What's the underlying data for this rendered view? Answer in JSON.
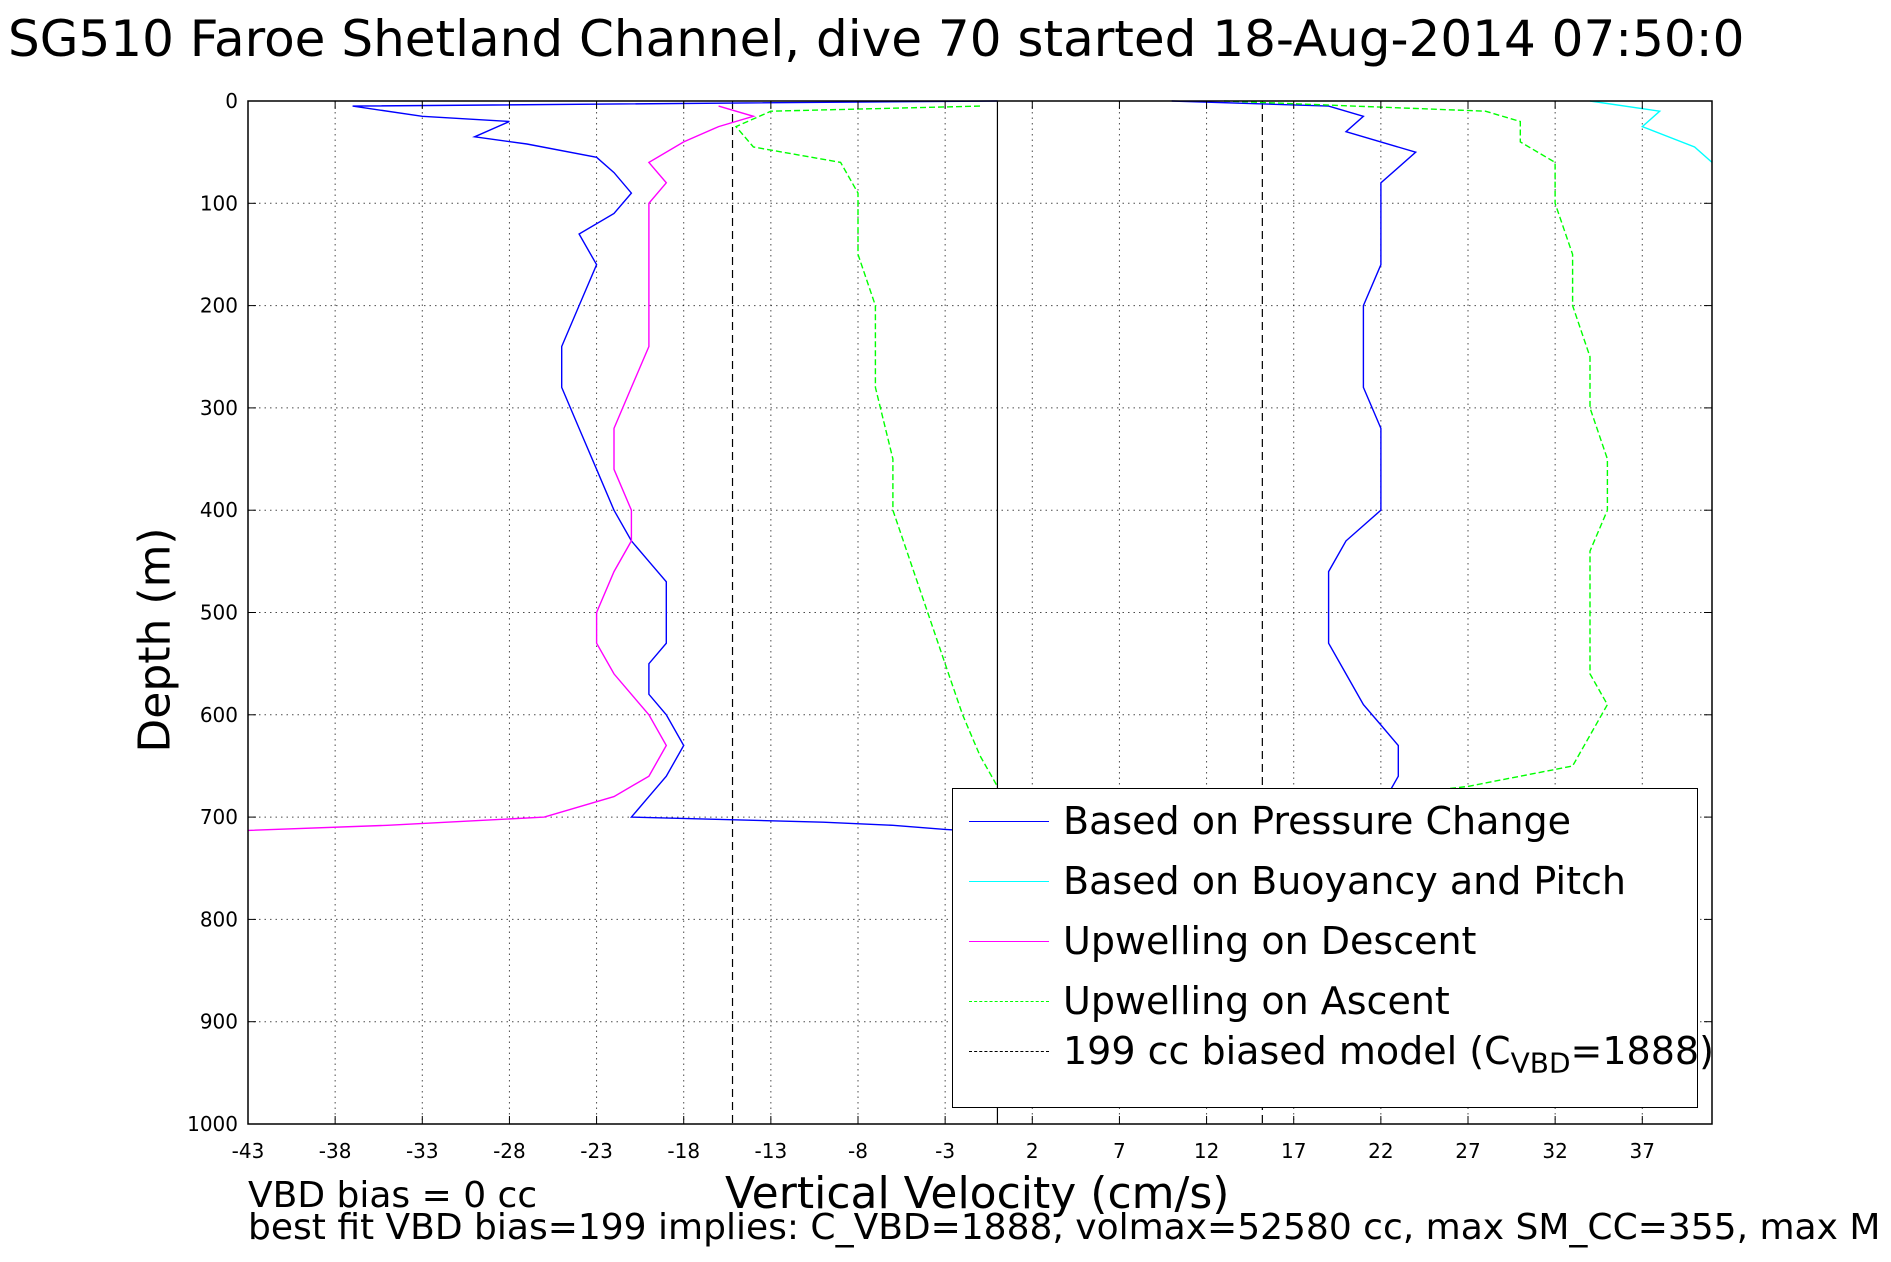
{
  "chart_data": {
    "type": "line",
    "title": "SG510 Faroe Shetland Channel, dive 70 started 18-Aug-2014 07:50:0",
    "xlabel": "Vertical Velocity (cm/s)",
    "ylabel": "Depth (m)",
    "xlim": [
      -43,
      41
    ],
    "ylim": [
      1000,
      0
    ],
    "y_reversed": true,
    "grid": true,
    "xticks": [
      -43,
      -38,
      -33,
      -28,
      -23,
      -18,
      -13,
      -8,
      -3,
      2,
      7,
      12,
      17,
      22,
      27,
      32,
      37
    ],
    "yticks": [
      0,
      100,
      200,
      300,
      400,
      500,
      600,
      700,
      800,
      900,
      1000
    ],
    "notes": [
      "VBD bias = 0 cc",
      "best fit VBD bias=199 implies: C_VBD=1888, volmax=52580 cc, max SM_CC=355, max M"
    ],
    "legend_position": "bottom-right",
    "reference_lines": [
      {
        "x": -15.2,
        "style": "dashed",
        "color": "#000000"
      },
      {
        "x": 0,
        "style": "solid",
        "color": "#000000"
      },
      {
        "x": 15.2,
        "style": "dashed",
        "color": "#000000"
      }
    ],
    "series": [
      {
        "name": "Based on Pressure Change",
        "color": "#0000ff",
        "style": "solid",
        "points": [
          [
            0,
            0
          ],
          [
            -37,
            5
          ],
          [
            -33,
            15
          ],
          [
            -28,
            20
          ],
          [
            -30,
            35
          ],
          [
            -27,
            42
          ],
          [
            -23,
            55
          ],
          [
            -22,
            70
          ],
          [
            -21,
            90
          ],
          [
            -22,
            110
          ],
          [
            -24,
            130
          ],
          [
            -23,
            160
          ],
          [
            -24,
            200
          ],
          [
            -25,
            240
          ],
          [
            -25,
            280
          ],
          [
            -24,
            320
          ],
          [
            -23,
            360
          ],
          [
            -22,
            400
          ],
          [
            -21,
            430
          ],
          [
            -20,
            450
          ],
          [
            -19,
            470
          ],
          [
            -19,
            500
          ],
          [
            -19,
            530
          ],
          [
            -20,
            550
          ],
          [
            -20,
            580
          ],
          [
            -19,
            600
          ],
          [
            -18,
            630
          ],
          [
            -19,
            660
          ],
          [
            -20,
            680
          ],
          [
            -21,
            700
          ],
          [
            -10,
            705
          ],
          [
            -6,
            708
          ],
          [
            -3,
            712
          ],
          [
            0,
            715
          ],
          [
            10,
            0
          ],
          [
            19,
            5
          ],
          [
            21,
            15
          ],
          [
            20,
            30
          ],
          [
            24,
            50
          ],
          [
            22,
            80
          ],
          [
            22,
            120
          ],
          [
            22,
            160
          ],
          [
            21,
            200
          ],
          [
            21,
            240
          ],
          [
            21,
            280
          ],
          [
            22,
            320
          ],
          [
            22,
            360
          ],
          [
            22,
            400
          ],
          [
            20,
            430
          ],
          [
            19,
            460
          ],
          [
            19,
            500
          ],
          [
            19,
            530
          ],
          [
            20,
            560
          ],
          [
            21,
            590
          ],
          [
            22,
            610
          ],
          [
            23,
            630
          ],
          [
            23,
            660
          ],
          [
            22,
            690
          ],
          [
            10,
            710
          ]
        ]
      },
      {
        "name": "Based on Buoyancy and Pitch",
        "color": "#00ffff",
        "style": "solid",
        "points": [
          [
            34,
            0
          ],
          [
            38,
            10
          ],
          [
            37,
            25
          ],
          [
            40,
            45
          ],
          [
            41,
            60
          ]
        ]
      },
      {
        "name": "Upwelling on Descent",
        "color": "#ff00ff",
        "style": "solid",
        "points": [
          [
            -16,
            5
          ],
          [
            -14,
            15
          ],
          [
            -16,
            25
          ],
          [
            -18,
            40
          ],
          [
            -20,
            60
          ],
          [
            -19,
            80
          ],
          [
            -20,
            100
          ],
          [
            -20,
            130
          ],
          [
            -20,
            160
          ],
          [
            -20,
            200
          ],
          [
            -20,
            240
          ],
          [
            -21,
            280
          ],
          [
            -22,
            320
          ],
          [
            -22,
            360
          ],
          [
            -21,
            400
          ],
          [
            -21,
            430
          ],
          [
            -22,
            460
          ],
          [
            -23,
            500
          ],
          [
            -23,
            530
          ],
          [
            -22,
            560
          ],
          [
            -21,
            580
          ],
          [
            -20,
            600
          ],
          [
            -19,
            630
          ],
          [
            -20,
            660
          ],
          [
            -22,
            680
          ],
          [
            -26,
            700
          ],
          [
            -35,
            708
          ],
          [
            -43,
            713
          ]
        ]
      },
      {
        "name": "Upwelling on Ascent",
        "color": "#00ff00",
        "style": "dashed",
        "points": [
          [
            -1,
            5
          ],
          [
            -13,
            10
          ],
          [
            -15,
            25
          ],
          [
            -14,
            45
          ],
          [
            -9,
            60
          ],
          [
            -8,
            90
          ],
          [
            -8,
            150
          ],
          [
            -7,
            200
          ],
          [
            -7,
            280
          ],
          [
            -6,
            350
          ],
          [
            -6,
            400
          ],
          [
            -5,
            450
          ],
          [
            -4,
            500
          ],
          [
            -3,
            550
          ],
          [
            -2,
            600
          ],
          [
            -1,
            640
          ],
          [
            0,
            670
          ],
          [
            13,
            0
          ],
          [
            28,
            10
          ],
          [
            30,
            20
          ],
          [
            30,
            40
          ],
          [
            32,
            60
          ],
          [
            32,
            100
          ],
          [
            33,
            150
          ],
          [
            33,
            200
          ],
          [
            34,
            250
          ],
          [
            34,
            300
          ],
          [
            35,
            350
          ],
          [
            35,
            400
          ],
          [
            34,
            440
          ],
          [
            34,
            480
          ],
          [
            34,
            520
          ],
          [
            34,
            560
          ],
          [
            35,
            590
          ],
          [
            34,
            620
          ],
          [
            33,
            650
          ],
          [
            27,
            670
          ],
          [
            22,
            680
          ]
        ]
      },
      {
        "name": "199 cc biased model (C_VBD=1888)",
        "legend_text": "199 cc biased model (C",
        "legend_sub": "VBD",
        "legend_tail": "=1888)",
        "color": "#000000",
        "style": "dashed",
        "points": []
      }
    ]
  }
}
